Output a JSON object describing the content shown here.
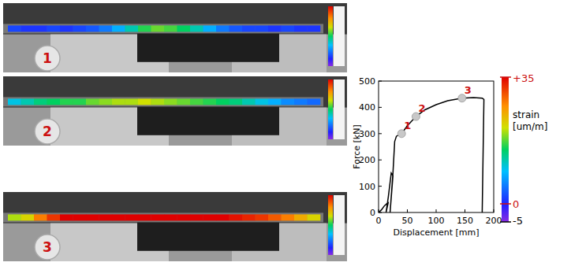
{
  "chart_data": {
    "type": "line",
    "x_label": "Displacement [mm]",
    "y_label": "Force [kN]",
    "x": [
      0,
      5,
      10,
      15,
      17,
      13,
      17,
      22,
      25,
      20,
      20,
      25,
      28,
      31,
      35,
      40,
      50,
      65,
      80,
      100,
      120,
      145,
      165,
      180,
      183,
      180
    ],
    "values": [
      0,
      10,
      25,
      35,
      40,
      0,
      60,
      150,
      140,
      0,
      0,
      150,
      270,
      290,
      295,
      300,
      330,
      365,
      390,
      410,
      425,
      435,
      437,
      435,
      430,
      0
    ],
    "color": "#000000",
    "xlim": [
      0,
      200
    ],
    "ylim": [
      0,
      500
    ],
    "xticks": [
      0,
      50,
      100,
      150,
      200
    ],
    "yticks": [
      0,
      100,
      200,
      300,
      400,
      500
    ],
    "annotations": [
      {
        "label": "1",
        "x": 40,
        "y": 300
      },
      {
        "label": "2",
        "x": 65,
        "y": 365
      },
      {
        "label": "3",
        "x": 145,
        "y": 435
      }
    ],
    "colorbar": {
      "label": "strain [um/m]",
      "range": [
        -5,
        35
      ],
      "ticks": [
        {
          "value": 35,
          "label": "+35"
        },
        0,
        -5
      ]
    }
  },
  "panels": [
    {
      "label": "1",
      "strain": [
        2,
        1,
        1,
        2,
        1,
        2,
        3,
        5,
        8,
        12,
        16,
        18,
        17,
        15,
        12,
        8,
        5,
        3,
        2,
        2,
        1,
        2,
        1,
        1
      ]
    },
    {
      "label": "2",
      "strain": [
        10,
        12,
        14,
        15,
        16,
        16,
        18,
        19,
        20,
        20,
        21,
        20,
        19,
        18,
        17,
        16,
        15,
        14,
        12,
        10,
        8,
        6,
        5,
        4
      ]
    },
    {
      "label": "3",
      "strain": [
        20,
        22,
        28,
        32,
        35,
        35,
        35,
        35,
        35,
        35,
        35,
        35,
        35,
        35,
        35,
        35,
        35,
        34,
        33,
        32,
        30,
        28,
        25,
        22
      ]
    }
  ]
}
